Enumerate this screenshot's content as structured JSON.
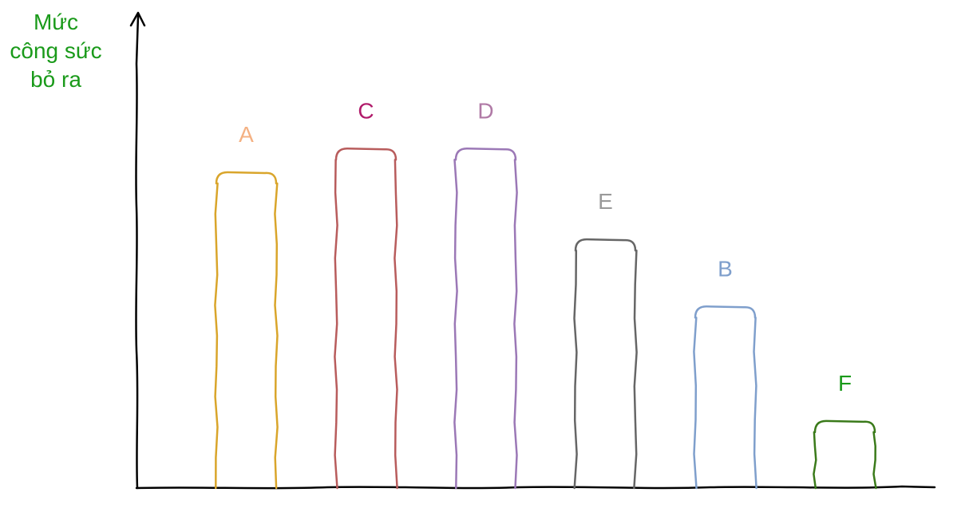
{
  "chart_data": {
    "type": "bar",
    "ylabel_lines": [
      "Mức",
      "công sức",
      "bỏ ra"
    ],
    "ylabel_color": "#1a9a1a",
    "categories": [
      "A",
      "C",
      "D",
      "E",
      "B",
      "F"
    ],
    "values": [
      80,
      86,
      86,
      63,
      46,
      17
    ],
    "bar_colors": [
      "#d9a52b",
      "#b85c5c",
      "#9b78b6",
      "#666666",
      "#7f9fcc",
      "#3a7a1a"
    ],
    "label_colors": [
      "#f4b183",
      "#b01a6a",
      "#b07aa6",
      "#9a9a9a",
      "#7f9fcc",
      "#1a9a1a"
    ],
    "ylim": [
      0,
      100
    ],
    "axis_color": "#000000"
  }
}
